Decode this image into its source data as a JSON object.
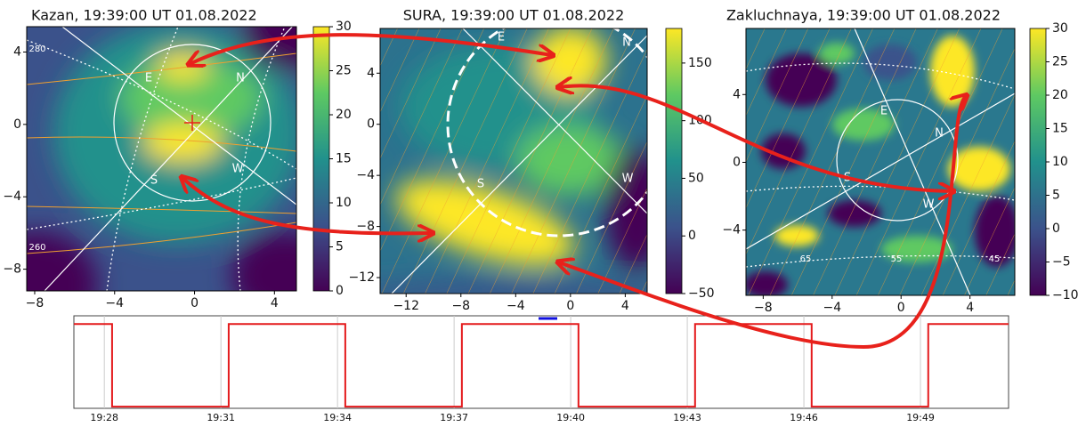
{
  "chart_data": [
    {
      "type": "heatmap",
      "title": "Kazan, 19:39:00 UT 01.08.2022",
      "xlim": [
        -8.4,
        5.1
      ],
      "ylim": [
        -9.2,
        5.4
      ],
      "xticks": [
        {
          "value": -8,
          "label": "−8"
        },
        {
          "value": -4,
          "label": "−4"
        },
        0,
        4
      ],
      "yticks": [
        4,
        0,
        {
          "value": -4,
          "label": "−4"
        },
        {
          "value": -8,
          "label": "−8"
        }
      ],
      "clim": [
        0,
        30
      ],
      "cticks": [
        0,
        5,
        10,
        15,
        20,
        25,
        30
      ],
      "annotations": [
        "E",
        "N",
        "S",
        "W",
        "280",
        "260"
      ]
    },
    {
      "type": "heatmap",
      "title": "SURA, 19:39:00 UT 01.08.2022",
      "xlim": [
        -13.9,
        5.6
      ],
      "ylim": [
        -13.25,
        7.5
      ],
      "xticks": [
        {
          "value": -12,
          "label": "−12"
        },
        {
          "value": -8,
          "label": "−8"
        },
        {
          "value": -4,
          "label": "−4"
        },
        0,
        4
      ],
      "yticks": [
        4,
        0,
        {
          "value": -4,
          "label": "−4"
        },
        {
          "value": -8,
          "label": "−8"
        },
        {
          "value": -12,
          "label": "−12"
        }
      ],
      "clim": [
        -50,
        180
      ],
      "cticks": [
        {
          "value": -50,
          "label": "−50"
        },
        0,
        50,
        100,
        150
      ],
      "annotations": [
        "E",
        "N",
        "S",
        "W"
      ]
    },
    {
      "type": "heatmap",
      "title": "Zakluchnaya, 19:39:00 UT 01.08.2022",
      "xlim": [
        -9,
        6.6
      ],
      "ylim": [
        -7.85,
        7.9
      ],
      "xticks": [
        {
          "value": -8,
          "label": "−8"
        },
        {
          "value": -4,
          "label": "−4"
        },
        0,
        4
      ],
      "yticks": [
        4,
        0,
        {
          "value": -4,
          "label": "−4"
        }
      ],
      "clim": [
        -10,
        30
      ],
      "cticks": [
        {
          "value": -10,
          "label": "−10"
        },
        {
          "value": -5,
          "label": "−5"
        },
        0,
        5,
        10,
        15,
        20,
        25,
        30
      ],
      "annotations": [
        "E",
        "N",
        "S",
        "W",
        "65",
        "55",
        "45"
      ]
    },
    {
      "type": "line",
      "x": [
        "19:27:13",
        "19:28:12",
        "19:28:12",
        "19:31:12",
        "19:31:12",
        "19:34:12",
        "19:34:12",
        "19:37:12",
        "19:37:12",
        "19:40:12",
        "19:40:12",
        "19:43:12",
        "19:43:12",
        "19:46:12",
        "19:46:12",
        "19:49:12",
        "19:49:12",
        "19:51:16"
      ],
      "series": [
        {
          "color": "#e41a1c",
          "values": [
            1,
            1,
            0,
            0,
            1,
            1,
            0,
            0,
            1,
            1,
            0,
            0,
            1,
            1,
            0,
            0,
            1,
            1
          ]
        }
      ],
      "xlim": [
        "19:27:13",
        "19:51:16"
      ],
      "ylim": [
        -0.02,
        1.1
      ],
      "xticks": [
        "19:28",
        "19:31",
        "19:34",
        "19:37",
        "19:40",
        "19:43",
        "19:46",
        "19:49"
      ]
    }
  ]
}
